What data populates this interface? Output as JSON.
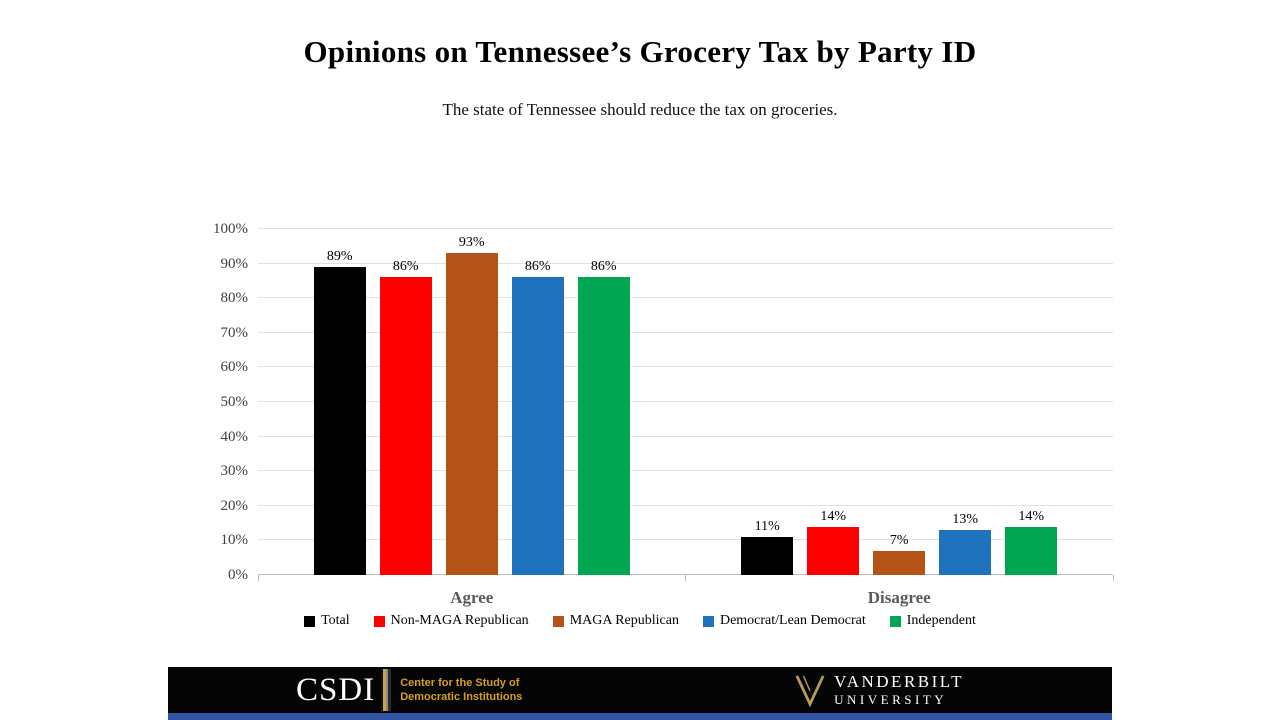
{
  "title": "Opinions on Tennessee’s Grocery Tax by Party ID",
  "subtitle": "The state of Tennessee should reduce the tax on groceries.",
  "chart_data": {
    "type": "bar",
    "categories": [
      "Agree",
      "Disagree"
    ],
    "series": [
      {
        "name": "Total",
        "color": "#000000",
        "values": [
          89,
          11
        ]
      },
      {
        "name": "Non-MAGA Republican",
        "color": "#fe0000",
        "values": [
          86,
          14
        ]
      },
      {
        "name": "MAGA Republican",
        "color": "#b45217",
        "values": [
          93,
          7
        ]
      },
      {
        "name": "Democrat/Lean Democrat",
        "color": "#1f72be",
        "values": [
          86,
          13
        ]
      },
      {
        "name": "Independent",
        "color": "#00a651",
        "values": [
          86,
          14
        ]
      }
    ],
    "ylim": [
      0,
      100
    ],
    "ytick_step": 10,
    "ytick_suffix": "%",
    "value_label_suffix": "%",
    "grid": true,
    "legend_position": "bottom"
  },
  "footer": {
    "csdi_acronym": "CSDI",
    "csdi_line1": "Center for the Study of",
    "csdi_line2": "Democratic Institutions",
    "vanderbilt_line1": "VANDERBILT",
    "vanderbilt_line2": "UNIVERSITY",
    "gold_color": "#d5a021",
    "logo_gold_color": "#b79a5c",
    "footer_bg_color": "#050505",
    "strip_color": "#2f55a4"
  }
}
